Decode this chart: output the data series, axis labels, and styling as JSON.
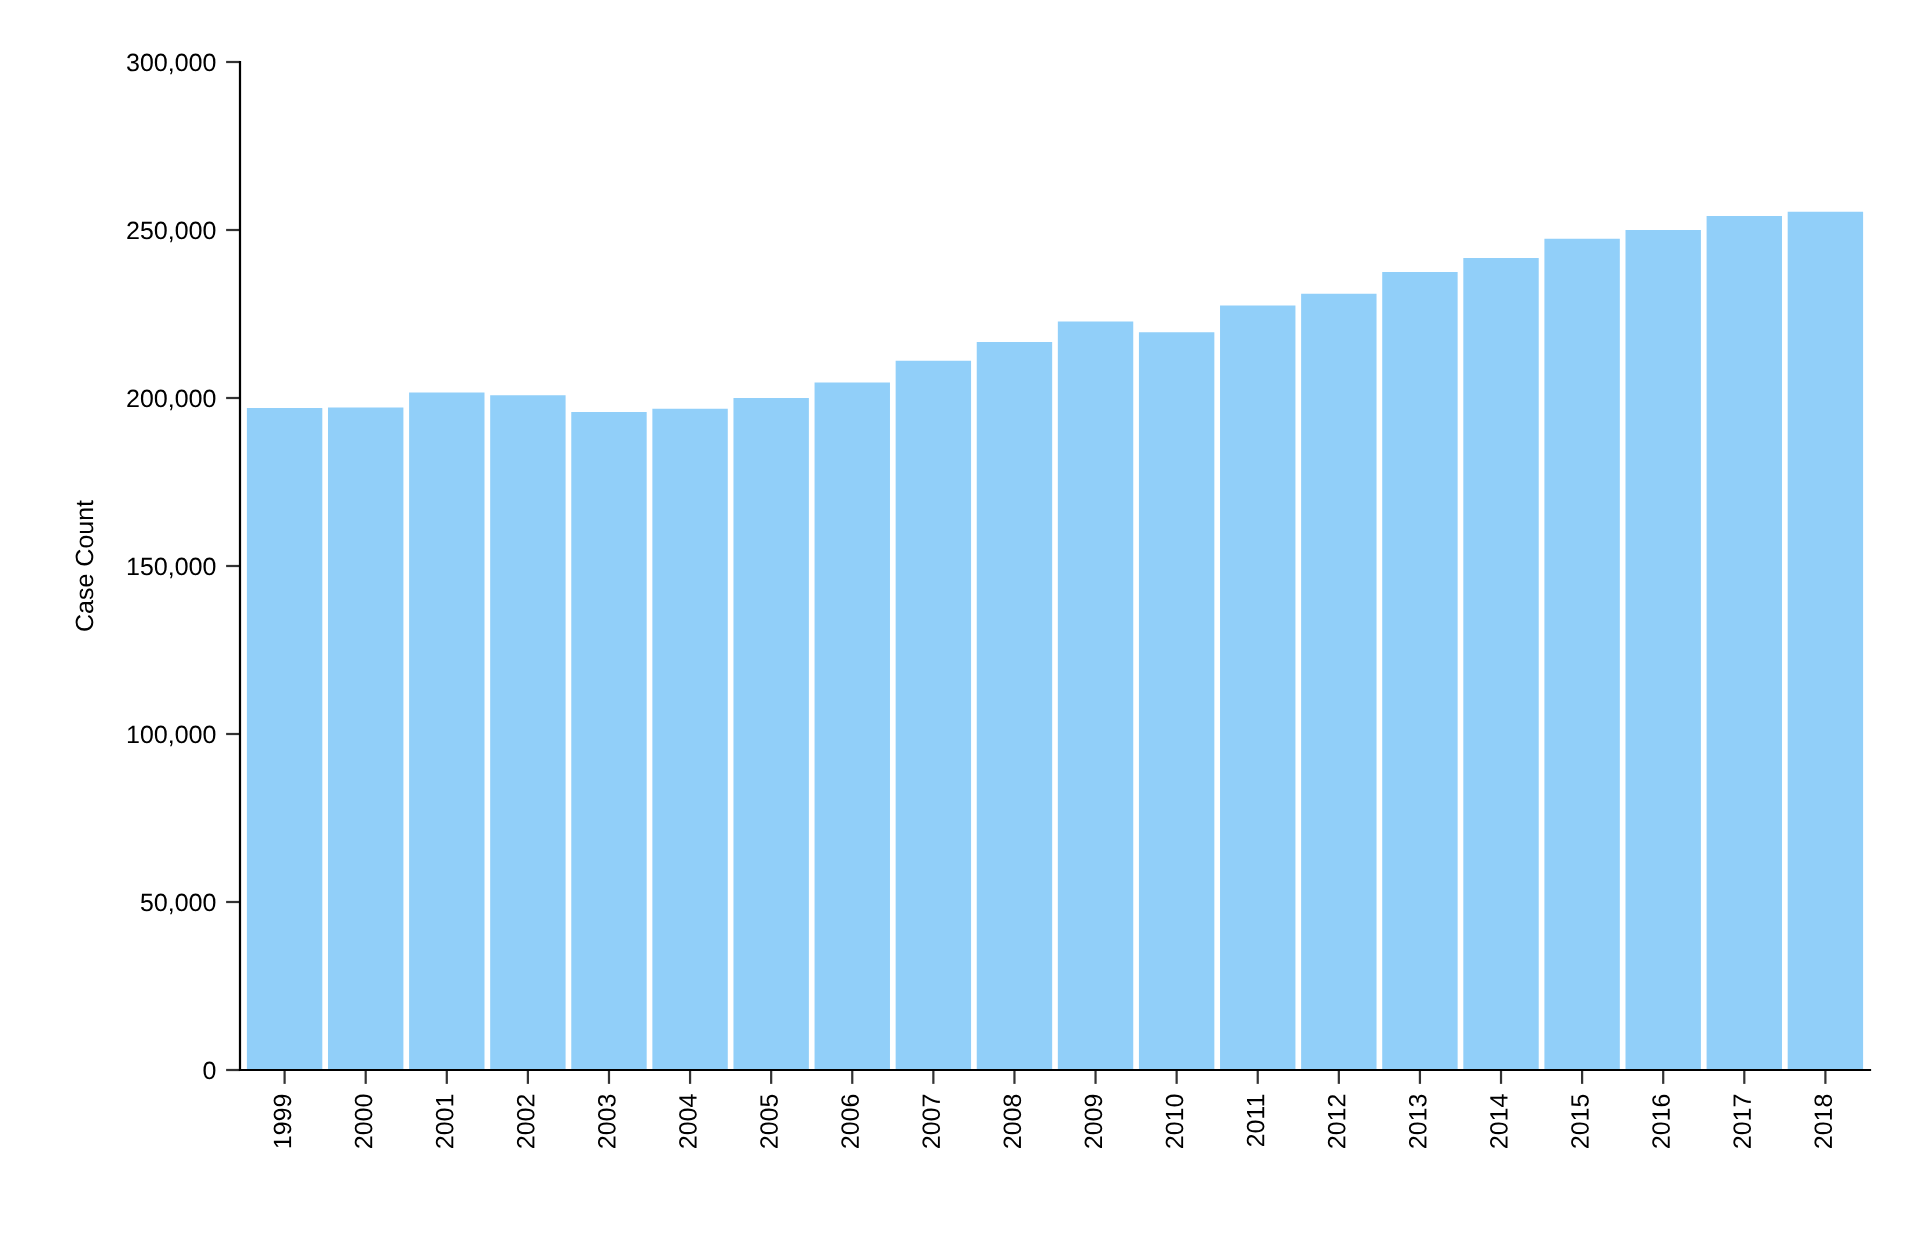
{
  "chart_data": {
    "type": "bar",
    "ylabel": "Case Count",
    "categories": [
      "1999",
      "2000",
      "2001",
      "2002",
      "2003",
      "2004",
      "2005",
      "2006",
      "2007",
      "2008",
      "2009",
      "2010",
      "2011",
      "2012",
      "2013",
      "2014",
      "2015",
      "2016",
      "2017",
      "2018"
    ],
    "values": [
      197000,
      197200,
      201600,
      200800,
      195800,
      196800,
      200000,
      204600,
      211100,
      216700,
      222800,
      219600,
      227500,
      231000,
      237500,
      241700,
      247400,
      250000,
      254200,
      255400
    ],
    "color": "#91cff9",
    "ylim": [
      0,
      300000
    ],
    "yticks": [
      {
        "value": 0,
        "label": "0"
      },
      {
        "value": 50000,
        "label": "50,000"
      },
      {
        "value": 100000,
        "label": "100,000"
      },
      {
        "value": 150000,
        "label": "150,000"
      },
      {
        "value": 200000,
        "label": "200,000"
      },
      {
        "value": 250000,
        "label": "250,000"
      },
      {
        "value": 300000,
        "label": "300,000"
      }
    ],
    "grid": false,
    "legend": false
  }
}
